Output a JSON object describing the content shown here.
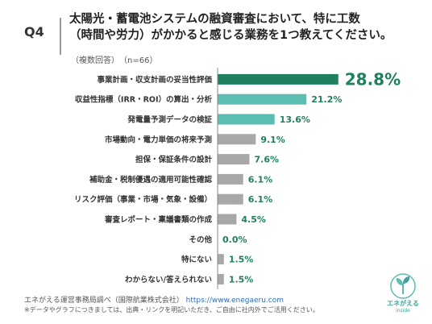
{
  "header": {
    "question": "Q4",
    "title_line1": "太陽光・蓄電池システムの融資審査において、特に工数",
    "title_line2": "（時間や労力）がかかると感じる業務を1つ教えてください。",
    "subtitle": "（複数回答）　（n=66）"
  },
  "colors": {
    "highlight": "#1f7f5e",
    "teal": "#5cbdb3",
    "gray": "#a8a8a8",
    "value_text": "#1f7f5e"
  },
  "chart_data": {
    "type": "bar",
    "orientation": "horizontal",
    "unit": "%",
    "categories": [
      "事業計画・収支計画の妥当性評価",
      "収益性指標（IRR・ROI）の算出・分析",
      "発電量予測データの検証",
      "市場動向・電力単価の将来予測",
      "担保・保証条件の設計",
      "補助金・税制優遇の適用可能性確認",
      "リスク評価（事業・市場・気象・設備）",
      "審査レポート・稟議書類の作成",
      "その他",
      "特にない",
      "わからない/答えられない"
    ],
    "values": [
      28.8,
      21.2,
      13.6,
      9.1,
      7.6,
      6.1,
      6.1,
      4.5,
      0.0,
      1.5,
      1.5
    ],
    "value_labels": [
      "28.8%",
      "21.2%",
      "13.6%",
      "9.1%",
      "7.6%",
      "6.1%",
      "6.1%",
      "4.5%",
      "0.0%",
      "1.5%",
      "1.5%"
    ],
    "bar_colors": [
      "highlight",
      "teal",
      "teal",
      "gray",
      "gray",
      "gray",
      "gray",
      "gray",
      "gray",
      "gray",
      "gray"
    ],
    "xlim": [
      0,
      30
    ],
    "grid": false,
    "legend": "none"
  },
  "footer": {
    "source": "エネがえる運営事務局調べ（国際航業株式会社）",
    "url": "https://www.enegaeru.com",
    "note": "※データやグラフにつきましては、出典・リンクを明記いただき、ご自由に社内外でご活用ください。"
  },
  "logo": {
    "line1": "エネがえる",
    "line2": "inside"
  }
}
